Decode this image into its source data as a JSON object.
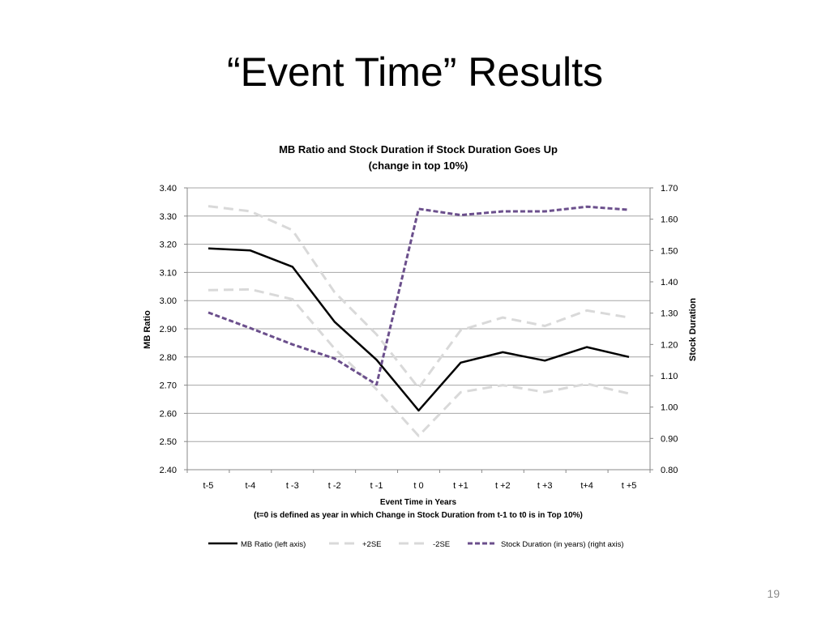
{
  "slide": {
    "title": "“Event Time” Results",
    "page_number": "19"
  },
  "chart_data": {
    "type": "line",
    "title": "MB Ratio and Stock Duration if Stock Duration Goes Up",
    "subtitle": "(change in top 10%)",
    "xlabel": "Event Time in Years",
    "xlabel_note": "(t=0 is defined as year in which Change in Stock Duration from t-1 to t0 is in Top 10%)",
    "ylabel": "MB Ratio",
    "y2label": "Stock Duration",
    "categories": [
      "t-5",
      "t-4",
      "t -3",
      "t -2",
      "t -1",
      "t 0",
      "t +1",
      "t +2",
      "t +3",
      "t+4",
      "t +5"
    ],
    "ylim": [
      2.4,
      3.4
    ],
    "y_ticks": [
      "2.40",
      "2.50",
      "2.60",
      "2.70",
      "2.80",
      "2.90",
      "3.00",
      "3.10",
      "3.20",
      "3.30",
      "3.40"
    ],
    "y2lim": [
      0.8,
      1.7
    ],
    "y2_ticks": [
      "0.80",
      "0.90",
      "1.00",
      "1.10",
      "1.20",
      "1.30",
      "1.40",
      "1.50",
      "1.60",
      "1.70"
    ],
    "grid": true,
    "legend_position": "bottom",
    "series": [
      {
        "name": "MB Ratio (left axis)",
        "axis": "left",
        "style": "solid",
        "color": "#000000",
        "values": [
          3.185,
          3.178,
          3.12,
          2.925,
          2.79,
          2.61,
          2.78,
          2.817,
          2.787,
          2.835,
          2.8
        ]
      },
      {
        "name": "+2SE",
        "axis": "left",
        "style": "dashed",
        "color": "#d9d9d9",
        "values": [
          3.335,
          3.317,
          3.25,
          3.03,
          2.88,
          2.69,
          2.895,
          2.94,
          2.91,
          2.965,
          2.94
        ]
      },
      {
        "name": "-2SE",
        "axis": "left",
        "style": "dashed",
        "color": "#d9d9d9",
        "values": [
          3.037,
          3.04,
          3.005,
          2.83,
          2.685,
          2.52,
          2.675,
          2.7,
          2.675,
          2.705,
          2.67
        ]
      },
      {
        "name": "Stock Duration (in years) (right axis)",
        "axis": "right",
        "style": "dotted",
        "color": "#6b4f8c",
        "values": [
          1.302,
          1.252,
          1.2,
          1.155,
          1.072,
          1.633,
          1.613,
          1.625,
          1.625,
          1.64,
          1.63
        ]
      }
    ]
  }
}
